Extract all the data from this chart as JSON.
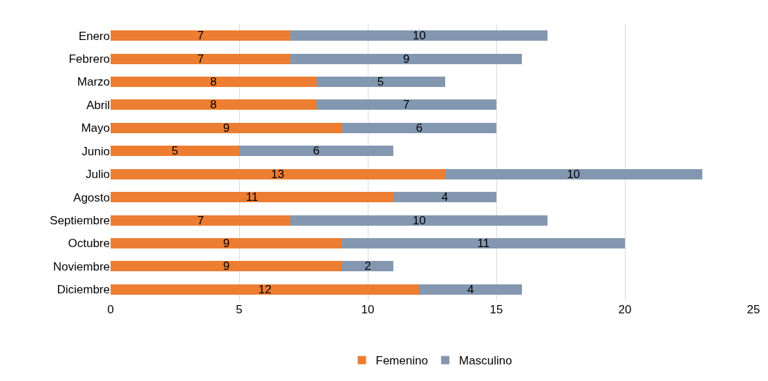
{
  "chart_data": {
    "type": "bar",
    "orientation": "horizontal",
    "stacked": true,
    "data_labels": true,
    "categories": [
      "Enero",
      "Febrero",
      "Marzo",
      "Abril",
      "Mayo",
      "Junio",
      "Julio",
      "Agosto",
      "Septiembre",
      "Octubre",
      "Noviembre",
      "Diciembre"
    ],
    "series": [
      {
        "name": "Femenino",
        "color": "#ed7d31",
        "values": [
          7,
          7,
          8,
          8,
          9,
          5,
          13,
          11,
          7,
          9,
          9,
          12
        ]
      },
      {
        "name": "Masculino",
        "color": "#8497b0",
        "values": [
          10,
          9,
          5,
          7,
          6,
          6,
          10,
          4,
          10,
          11,
          2,
          4
        ]
      }
    ],
    "xlim": [
      0,
      25
    ],
    "xticks": [
      0,
      5,
      10,
      15,
      20,
      25
    ],
    "grid": "x",
    "legend": "bottom"
  }
}
